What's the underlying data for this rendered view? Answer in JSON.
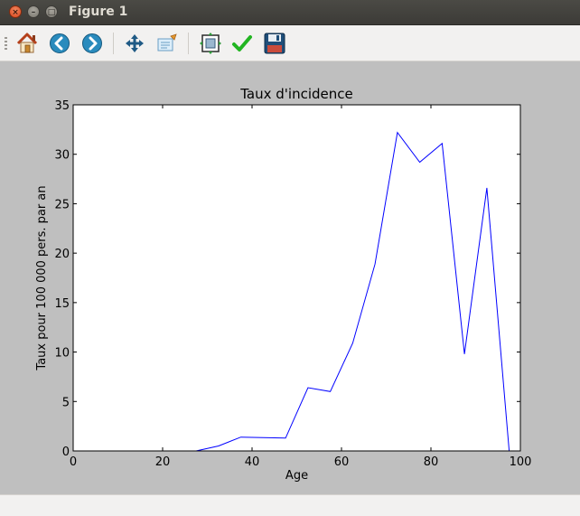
{
  "window": {
    "title": "Figure 1"
  },
  "window_buttons": {
    "close": "×",
    "minimize": "–",
    "maximize": "□"
  },
  "toolbar": {
    "tools": [
      {
        "name": "home-button",
        "icon": "home-icon"
      },
      {
        "name": "back-button",
        "icon": "back-arrow-icon"
      },
      {
        "name": "forward-button",
        "icon": "forward-arrow-icon"
      },
      {
        "name": "pan-button",
        "icon": "move-icon"
      },
      {
        "name": "zoom-button",
        "icon": "zoom-rect-icon"
      },
      {
        "name": "subplots-button",
        "icon": "subplots-icon"
      },
      {
        "name": "edit-button",
        "icon": "checkmark-icon"
      },
      {
        "name": "save-button",
        "icon": "floppy-disk-icon"
      }
    ]
  },
  "colors": {
    "line": "#0000ff",
    "canvas_bg": "#bfbfbf",
    "plot_bg": "#ffffff"
  },
  "chart_data": {
    "type": "line",
    "title": "Taux d'incidence",
    "xlabel": "Age",
    "ylabel": "Taux pour 100 000 pers. par an",
    "xlim": [
      0,
      100
    ],
    "ylim": [
      0,
      35
    ],
    "xticks": [
      "0",
      "20",
      "40",
      "60",
      "80",
      "100"
    ],
    "yticks": [
      "0",
      "5",
      "10",
      "15",
      "20",
      "25",
      "30",
      "35"
    ],
    "grid": false,
    "series": [
      {
        "x": [
          27.5,
          32.5,
          37.5,
          42.5,
          47.5,
          52.5,
          57.5,
          62.5,
          67.5,
          72.5,
          77.5,
          82.5,
          87.5,
          92.5,
          97.5
        ],
        "values": [
          0,
          0.5,
          1.4,
          1.35,
          1.3,
          6.4,
          6.0,
          10.9,
          18.9,
          32.2,
          29.2,
          31.1,
          9.8,
          26.6,
          0
        ]
      }
    ]
  }
}
